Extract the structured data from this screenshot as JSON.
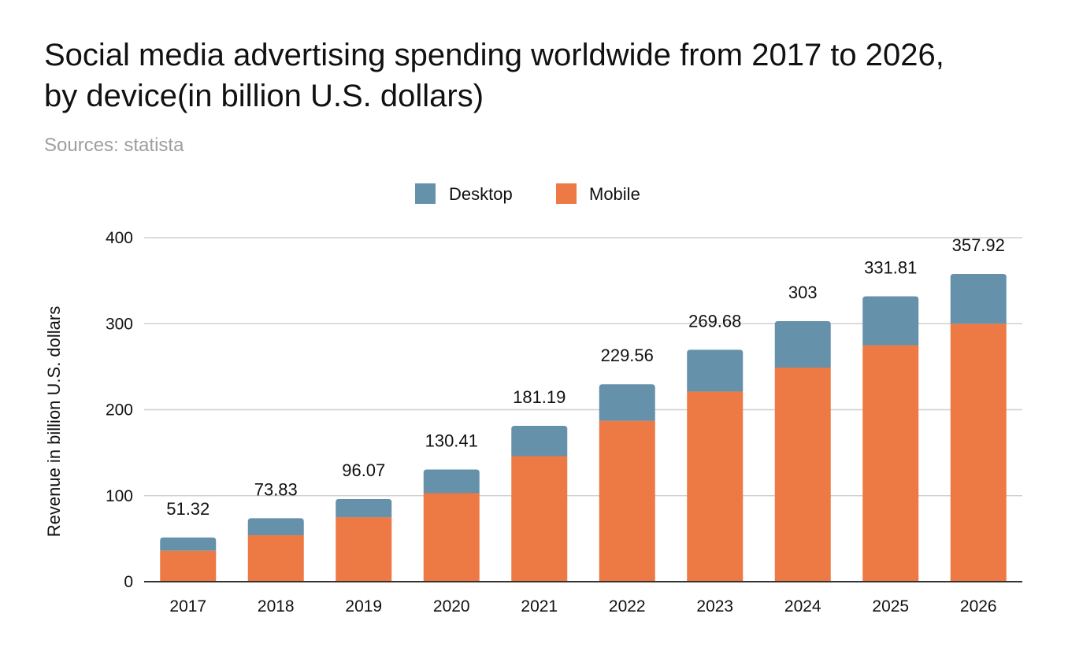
{
  "chart_data": {
    "type": "bar",
    "stacked": true,
    "title_line1": "Social media advertising spending worldwide from 2017 to 2026,",
    "title_line2": "by device(in billion U.S. dollars)",
    "subtitle": "Sources: statista",
    "xlabel": "",
    "ylabel": "Revenue in billion U.S. dollars",
    "ylim": [
      0,
      400
    ],
    "yticks": [
      0,
      100,
      200,
      300,
      400
    ],
    "grid": true,
    "legend_position": "top-center",
    "categories": [
      "2017",
      "2018",
      "2019",
      "2020",
      "2021",
      "2022",
      "2023",
      "2024",
      "2025",
      "2026"
    ],
    "series": [
      {
        "name": "Mobile",
        "color": "#ed7944",
        "values": [
          36,
          54,
          75,
          103,
          146,
          187,
          221,
          249,
          275,
          300
        ]
      },
      {
        "name": "Desktop",
        "color": "#6591ab",
        "values": [
          15.32,
          19.83,
          21.07,
          27.41,
          35.19,
          42.56,
          48.68,
          54,
          56.81,
          57.92
        ]
      }
    ],
    "legend_order": [
      "Desktop",
      "Mobile"
    ],
    "total_labels": [
      "51.32",
      "73.83",
      "96.07",
      "130.41",
      "181.19",
      "229.56",
      "269.68",
      "303",
      "331.81",
      "357.92"
    ],
    "totals": [
      51.32,
      73.83,
      96.07,
      130.41,
      181.19,
      229.56,
      269.68,
      303,
      331.81,
      357.92
    ]
  }
}
